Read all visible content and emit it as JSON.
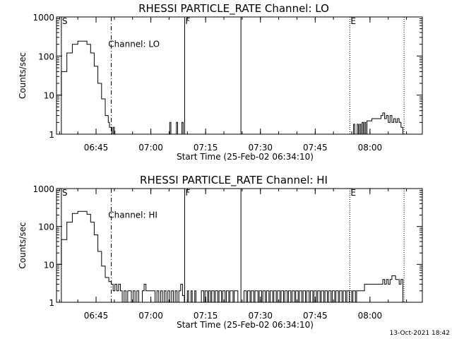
{
  "footer": {
    "timestamp": "13-Oct-2021 18:42"
  },
  "chart_data": [
    {
      "type": "line",
      "title": "RHESSI PARTICLE_RATE Channel: LO",
      "xlabel": "Start Time (25-Feb-02 06:34:10)",
      "ylabel": "Counts/sec",
      "yscale": "log",
      "ylim": [
        1,
        1000
      ],
      "xlim": [
        "06:34:10",
        "08:14:20"
      ],
      "x_ticks": [
        "06:45",
        "07:00",
        "07:15",
        "07:30",
        "07:45",
        "08:00"
      ],
      "y_ticks": [
        "1",
        "10",
        "100",
        "1000"
      ],
      "annotation": "Channel: LO",
      "markers": [
        {
          "time": "06:35:30",
          "label": "S",
          "style": "solid"
        },
        {
          "time": "06:49:10",
          "label": "",
          "style": "dashdot"
        },
        {
          "time": "07:09:15",
          "label": "F",
          "style": "solid"
        },
        {
          "time": "07:24:40",
          "label": "",
          "style": "solid"
        },
        {
          "time": "07:54:30",
          "label": "E",
          "style": "dotted"
        },
        {
          "time": "08:09:20",
          "label": "",
          "style": "dotted"
        }
      ],
      "series": [
        {
          "style": "solid",
          "segments": [
            {
              "x": [
                "06:34:10",
                "06:35:30",
                "06:37:00",
                "06:38:30",
                "06:40:00",
                "06:41:00",
                "06:42:30",
                "06:43:30",
                "06:44:30",
                "06:45:30",
                "06:46:30",
                "06:47:30",
                "06:48:20",
                "06:48:40",
                "06:49:10",
                "06:49:20",
                "06:49:40",
                "06:50:00",
                "06:50:10"
              ],
              "y": [
                10,
                40,
                120,
                200,
                240,
                240,
                200,
                120,
                55,
                20,
                8,
                3,
                2,
                1.5,
                1.5,
                1,
                1.5,
                1.2,
                1
              ]
            },
            {
              "x": [
                "07:04:50",
                "07:05:10",
                "07:05:30",
                "07:06:40",
                "07:07:00",
                "07:07:20",
                "07:08:10",
                "07:08:30",
                "07:08:50"
              ],
              "y": [
                1,
                2,
                1,
                1,
                2,
                1,
                1,
                2,
                1
              ]
            },
            {
              "x": [
                "07:55:10",
                "07:55:30",
                "07:55:50",
                "07:56:30",
                "07:56:50",
                "07:57:10",
                "07:57:30",
                "07:57:50",
                "07:58:10",
                "07:58:30",
                "07:58:50",
                "07:59:10",
                "08:00:00",
                "08:00:30",
                "08:02:00",
                "08:03:00",
                "08:03:30",
                "08:04:00",
                "08:04:30",
                "08:05:00",
                "08:05:30",
                "08:06:00",
                "08:06:30",
                "08:07:00",
                "08:07:30",
                "08:08:00",
                "08:08:30",
                "08:09:00"
              ],
              "y": [
                1,
                1.8,
                1,
                1.8,
                1,
                1.8,
                1,
                2,
                1,
                2,
                1,
                2.2,
                2.2,
                2.5,
                2.5,
                3,
                3.5,
                2.5,
                3,
                2,
                3,
                2,
                2.5,
                2,
                2.5,
                2,
                1.5,
                1
              ]
            }
          ]
        }
      ]
    },
    {
      "type": "line",
      "title": "RHESSI PARTICLE_RATE Channel: HI",
      "xlabel": "Start Time (25-Feb-02 06:34:10)",
      "ylabel": "Counts/sec",
      "yscale": "log",
      "ylim": [
        1,
        1000
      ],
      "xlim": [
        "06:34:10",
        "08:14:20"
      ],
      "x_ticks": [
        "06:45",
        "07:00",
        "07:15",
        "07:30",
        "07:45",
        "08:00"
      ],
      "y_ticks": [
        "1",
        "10",
        "100",
        "1000"
      ],
      "annotation": "Channel: HI",
      "markers": [
        {
          "time": "06:35:30",
          "label": "S",
          "style": "solid"
        },
        {
          "time": "06:49:10",
          "label": "",
          "style": "dashdot"
        },
        {
          "time": "07:09:15",
          "label": "F",
          "style": "solid"
        },
        {
          "time": "07:24:40",
          "label": "",
          "style": "solid"
        },
        {
          "time": "07:54:30",
          "label": "E",
          "style": "dotted"
        },
        {
          "time": "08:09:20",
          "label": "",
          "style": "dotted"
        }
      ],
      "series": [
        {
          "style": "solid",
          "segments": [
            {
              "x": [
                "06:34:10",
                "06:35:30",
                "06:37:00",
                "06:38:30",
                "06:40:00",
                "06:41:00",
                "06:42:30",
                "06:43:30",
                "06:44:30",
                "06:45:30",
                "06:46:30",
                "06:47:30",
                "06:48:30",
                "06:49:10",
                "06:49:40",
                "06:50:10",
                "06:50:40",
                "06:51:10",
                "06:51:40",
                "06:52:10",
                "06:52:40",
                "06:53:10",
                "06:53:40",
                "06:54:10",
                "06:54:40",
                "06:55:10",
                "06:55:40",
                "06:56:10",
                "06:56:40",
                "06:57:10",
                "06:57:40",
                "06:58:10",
                "06:58:40",
                "06:59:10",
                "06:59:40",
                "07:00:10",
                "07:00:40",
                "07:01:10",
                "07:01:40",
                "07:02:10",
                "07:02:40",
                "07:03:10",
                "07:03:40",
                "07:04:10",
                "07:04:40",
                "07:05:10",
                "07:05:40",
                "07:06:10",
                "07:06:40",
                "07:07:10",
                "07:07:40",
                "07:08:10",
                "07:08:40",
                "07:09:10"
              ],
              "y": [
                10,
                45,
                130,
                220,
                250,
                250,
                210,
                130,
                60,
                22,
                9,
                4.5,
                3.5,
                3,
                2,
                3,
                2,
                3,
                2,
                1,
                2,
                1,
                2,
                2,
                1,
                2,
                1,
                2,
                1,
                1,
                2,
                3,
                2,
                2,
                2,
                2,
                2,
                1,
                2,
                1,
                2,
                1,
                2,
                1,
                2,
                1,
                2,
                1,
                2,
                1,
                2,
                3,
                1.5,
                1
              ]
            },
            {
              "x": [
                "07:09:30",
                "07:10:00",
                "07:10:20",
                "07:11:00",
                "07:11:20",
                "07:12:00",
                "07:12:20",
                "07:13:30",
                "07:13:50",
                "07:14:30",
                "07:14:50",
                "07:15:30",
                "07:15:50",
                "07:16:20",
                "07:16:40",
                "07:17:20",
                "07:17:40",
                "07:18:20",
                "07:18:40",
                "07:19:20",
                "07:19:40",
                "07:20:20",
                "07:20:40",
                "07:21:20",
                "07:21:40",
                "07:22:30",
                "07:22:50",
                "07:23:30",
                "07:23:50",
                "07:24:30"
              ],
              "y": [
                1,
                2,
                1,
                2,
                1,
                2,
                1,
                1,
                2,
                1,
                2,
                1,
                2,
                1,
                2,
                1,
                2,
                1,
                2,
                1,
                2,
                1,
                2,
                1,
                2,
                1,
                2,
                2,
                1,
                1
              ]
            },
            {
              "x": [
                "07:25:10",
                "07:25:30",
                "07:26:10",
                "07:26:30",
                "07:27:10",
                "07:27:30",
                "07:28:10",
                "07:28:30",
                "07:29:20",
                "07:29:40",
                "07:30:20",
                "07:30:40",
                "07:31:20",
                "07:31:40",
                "07:32:20",
                "07:32:40",
                "07:33:20",
                "07:33:40",
                "07:34:20",
                "07:34:40",
                "07:35:20",
                "07:35:40",
                "07:36:20",
                "07:36:40",
                "07:37:20",
                "07:37:40",
                "07:38:20",
                "07:38:40",
                "07:39:20",
                "07:39:40",
                "07:40:20",
                "07:40:40",
                "07:41:20",
                "07:41:40",
                "07:42:20",
                "07:42:40",
                "07:43:20",
                "07:43:40",
                "07:44:20",
                "07:44:40",
                "07:45:20",
                "07:45:40",
                "07:46:20",
                "07:46:40",
                "07:47:20",
                "07:47:40",
                "07:48:20",
                "07:48:40",
                "07:49:20",
                "07:49:40",
                "07:50:20",
                "07:50:40",
                "07:51:20",
                "07:51:40",
                "07:52:20",
                "07:52:40",
                "07:53:20",
                "07:53:40",
                "07:54:20"
              ],
              "y": [
                1,
                2,
                1,
                2,
                1,
                2,
                1,
                2,
                1,
                2,
                1,
                2,
                1,
                2,
                1,
                2,
                1,
                2,
                1,
                2,
                1,
                2,
                1,
                2,
                1,
                2,
                1,
                2,
                1,
                2,
                1,
                2,
                1,
                2,
                1,
                2,
                1,
                2,
                1,
                2,
                1,
                2,
                1,
                2,
                1,
                2,
                1,
                2,
                1,
                2,
                1,
                2,
                1,
                2,
                1,
                2,
                1,
                2,
                1
              ]
            },
            {
              "x": [
                "07:54:40",
                "07:55:00",
                "07:55:20",
                "07:56:00",
                "07:56:20",
                "07:57:00",
                "07:57:30",
                "07:58:00",
                "07:58:30",
                "07:59:00",
                "08:00:00",
                "08:01:00",
                "08:02:00",
                "08:03:00",
                "08:03:30",
                "08:04:00",
                "08:04:30",
                "08:05:00",
                "08:05:30",
                "08:06:00",
                "08:06:30",
                "08:07:00",
                "08:07:30",
                "08:08:00",
                "08:08:30",
                "08:09:00"
              ],
              "y": [
                2,
                1,
                2,
                1,
                2,
                2,
                2,
                2,
                3,
                3,
                3,
                3,
                3,
                3,
                4,
                3,
                4,
                3,
                4,
                5,
                5,
                4,
                4,
                3,
                4,
                1
              ]
            }
          ]
        }
      ]
    }
  ]
}
